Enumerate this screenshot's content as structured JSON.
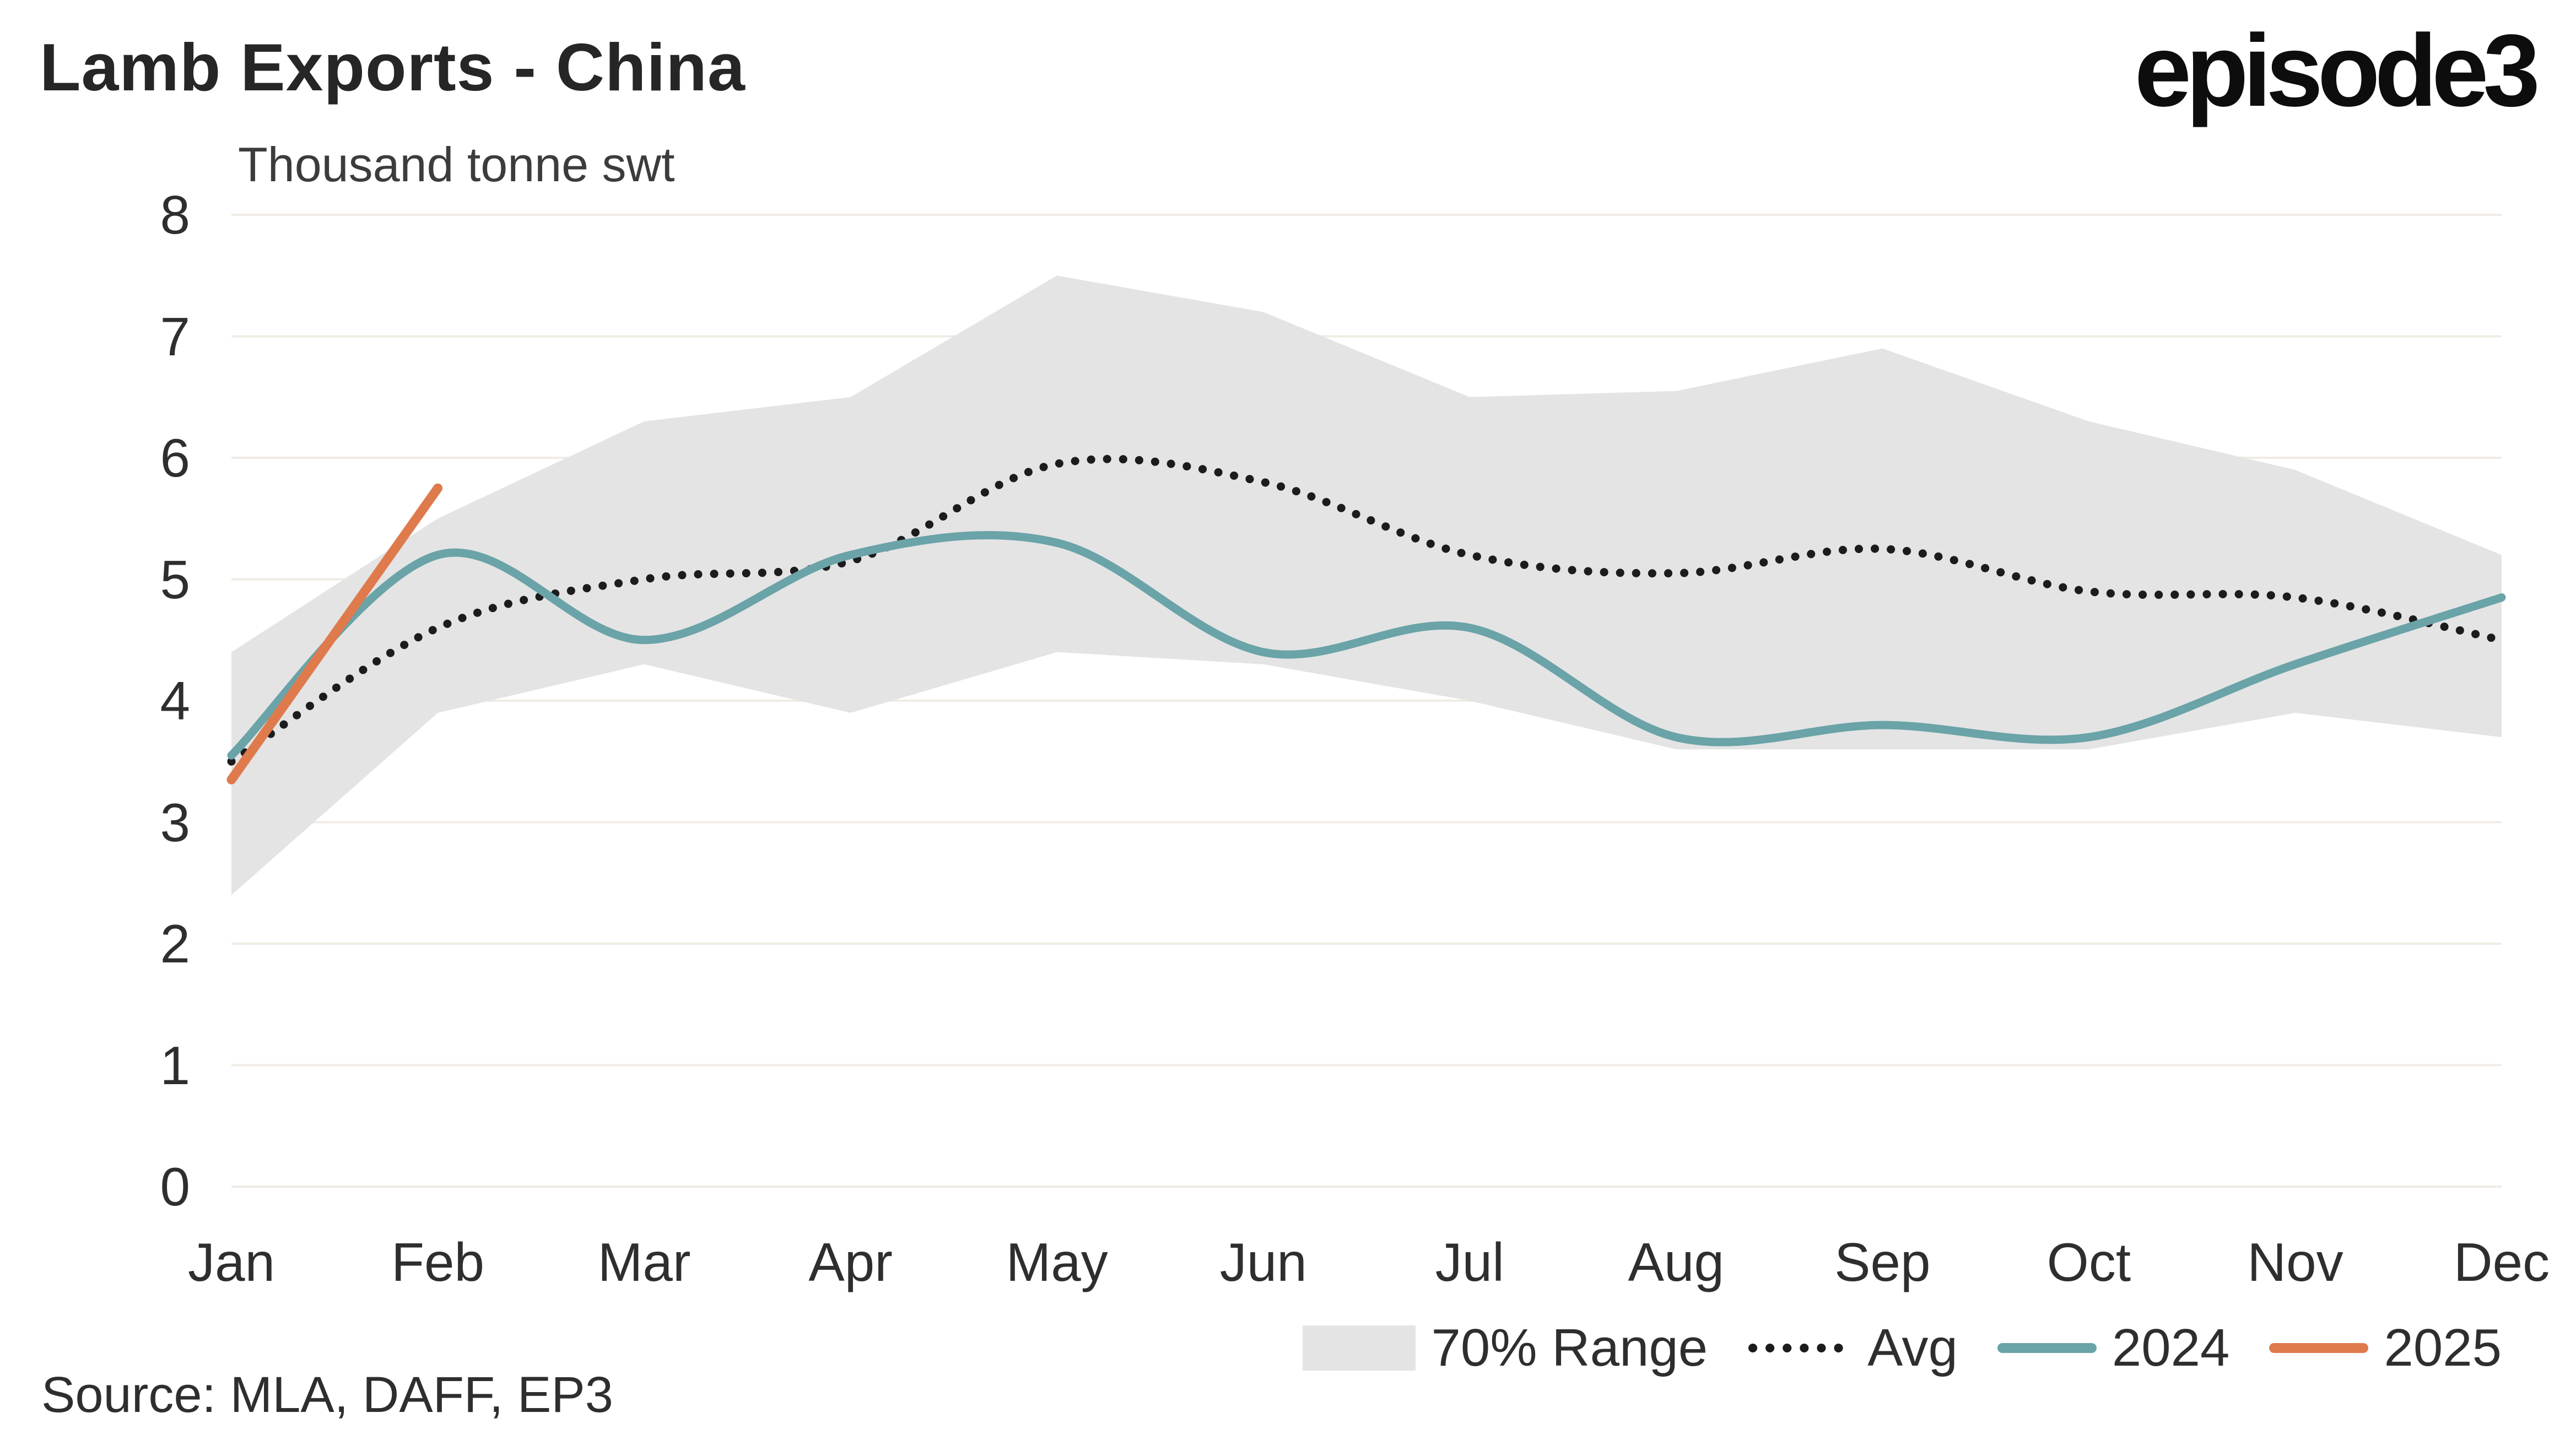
{
  "header": {
    "title": "Lamb Exports - China",
    "logo_text": "episode3"
  },
  "axis": {
    "unit_label": "Thousand tonne swt"
  },
  "source_note": "Source: MLA, DAFF, EP3",
  "legend": {
    "range_label": "70% Range",
    "avg_label": "Avg",
    "series_2024_label": "2024",
    "series_2025_label": "2025"
  },
  "colors": {
    "band": "#E4E4E4",
    "avg": "#1C1C1C",
    "series_2024": "#6AA3A8",
    "series_2025": "#DF7A4D",
    "grid": "#F0ECE4",
    "text": "#2E2E2E"
  },
  "chart_data": {
    "type": "line",
    "title": "Lamb Exports - China",
    "ylabel": "Thousand tonne swt",
    "categories": [
      "Jan",
      "Feb",
      "Mar",
      "Apr",
      "May",
      "Jun",
      "Jul",
      "Aug",
      "Sep",
      "Oct",
      "Nov",
      "Dec"
    ],
    "ylim": [
      0,
      8
    ],
    "yticks": [
      0,
      1,
      2,
      3,
      4,
      5,
      6,
      7,
      8
    ],
    "grid": "horizontal",
    "legend_position": "bottom",
    "band": {
      "name": "70% Range",
      "lower": [
        2.4,
        3.9,
        4.3,
        3.9,
        4.4,
        4.3,
        4.0,
        3.6,
        3.6,
        3.6,
        3.9,
        3.7
      ],
      "upper": [
        4.4,
        5.5,
        6.3,
        6.5,
        7.5,
        7.2,
        6.5,
        6.55,
        6.9,
        6.3,
        5.9,
        5.2
      ]
    },
    "series": [
      {
        "name": "Avg",
        "style": "dotted",
        "values": [
          3.5,
          4.6,
          5.0,
          5.15,
          5.95,
          5.8,
          5.2,
          5.05,
          5.25,
          4.9,
          4.85,
          4.5
        ]
      },
      {
        "name": "2024",
        "style": "solid",
        "values": [
          3.55,
          5.2,
          4.5,
          5.2,
          5.3,
          4.4,
          4.6,
          3.7,
          3.8,
          3.7,
          4.3,
          4.85
        ]
      },
      {
        "name": "2025",
        "style": "solid",
        "values": [
          3.35,
          5.75
        ]
      }
    ]
  }
}
